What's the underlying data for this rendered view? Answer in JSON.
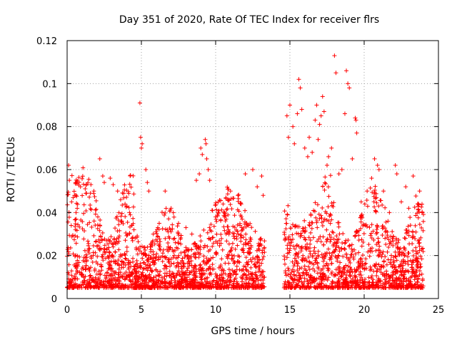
{
  "chart_data": {
    "type": "scatter",
    "title": "Day 351 of 2020, Rate Of TEC Index for receiver flrs",
    "xlabel": "GPS time / hours",
    "ylabel": "ROTI / TECUs",
    "xlim": [
      0,
      25
    ],
    "ylim": [
      0,
      0.12
    ],
    "x_ticks": [
      0,
      5,
      10,
      15,
      20,
      25
    ],
    "y_ticks": [
      0,
      0.02,
      0.04,
      0.06,
      0.08,
      0.1,
      0.12
    ],
    "grid": true,
    "marker": "+",
    "colors": {
      "points": "#ff0000",
      "axes": "#000000",
      "grid": "#a0a0a0"
    },
    "data_gap_hours": [
      13.3,
      14.6
    ],
    "series": [
      {
        "name": "",
        "points": [
          [
            0.1,
            0.062
          ],
          [
            0.15,
            0.055
          ],
          [
            0.3,
            0.045
          ],
          [
            0.5,
            0.048
          ],
          [
            0.6,
            0.04
          ],
          [
            0.9,
            0.052
          ],
          [
            1.3,
            0.049
          ],
          [
            1.8,
            0.05
          ],
          [
            2.2,
            0.065
          ],
          [
            2.4,
            0.057
          ],
          [
            2.5,
            0.054
          ],
          [
            2.9,
            0.056
          ],
          [
            3.1,
            0.053
          ],
          [
            3.4,
            0.05
          ],
          [
            3.6,
            0.046
          ],
          [
            3.9,
            0.044
          ],
          [
            4.2,
            0.04
          ],
          [
            4.5,
            0.032
          ],
          [
            4.9,
            0.091
          ],
          [
            4.95,
            0.075
          ],
          [
            5.0,
            0.07
          ],
          [
            5.05,
            0.072
          ],
          [
            5.3,
            0.06
          ],
          [
            5.4,
            0.054
          ],
          [
            5.5,
            0.05
          ],
          [
            5.8,
            0.03
          ],
          [
            6.2,
            0.035
          ],
          [
            6.6,
            0.05
          ],
          [
            7.0,
            0.042
          ],
          [
            7.5,
            0.035
          ],
          [
            8.0,
            0.033
          ],
          [
            8.4,
            0.03
          ],
          [
            8.7,
            0.055
          ],
          [
            8.9,
            0.058
          ],
          [
            9.0,
            0.07
          ],
          [
            9.1,
            0.067
          ],
          [
            9.3,
            0.074
          ],
          [
            9.35,
            0.072
          ],
          [
            9.4,
            0.065
          ],
          [
            9.5,
            0.06
          ],
          [
            9.6,
            0.055
          ],
          [
            10.0,
            0.038
          ],
          [
            10.5,
            0.044
          ],
          [
            11.0,
            0.05
          ],
          [
            11.5,
            0.048
          ],
          [
            12.0,
            0.058
          ],
          [
            12.5,
            0.06
          ],
          [
            12.8,
            0.052
          ],
          [
            13.1,
            0.057
          ],
          [
            13.2,
            0.048
          ],
          [
            14.8,
            0.085
          ],
          [
            14.9,
            0.075
          ],
          [
            15.0,
            0.09
          ],
          [
            15.2,
            0.08
          ],
          [
            15.3,
            0.072
          ],
          [
            15.5,
            0.086
          ],
          [
            15.6,
            0.102
          ],
          [
            15.7,
            0.098
          ],
          [
            15.8,
            0.088
          ],
          [
            16.0,
            0.07
          ],
          [
            16.2,
            0.066
          ],
          [
            16.3,
            0.075
          ],
          [
            16.5,
            0.068
          ],
          [
            16.7,
            0.083
          ],
          [
            16.8,
            0.09
          ],
          [
            16.9,
            0.074
          ],
          [
            17.0,
            0.081
          ],
          [
            17.1,
            0.085
          ],
          [
            17.2,
            0.094
          ],
          [
            17.3,
            0.087
          ],
          [
            17.5,
            0.062
          ],
          [
            17.6,
            0.066
          ],
          [
            17.8,
            0.07
          ],
          [
            18.0,
            0.113
          ],
          [
            18.1,
            0.105
          ],
          [
            18.3,
            0.058
          ],
          [
            18.5,
            0.06
          ],
          [
            18.7,
            0.086
          ],
          [
            18.8,
            0.106
          ],
          [
            18.9,
            0.1
          ],
          [
            19.0,
            0.098
          ],
          [
            19.2,
            0.065
          ],
          [
            19.4,
            0.084
          ],
          [
            19.45,
            0.083
          ],
          [
            19.5,
            0.077
          ],
          [
            19.8,
            0.045
          ],
          [
            20.2,
            0.05
          ],
          [
            20.5,
            0.056
          ],
          [
            20.7,
            0.065
          ],
          [
            20.9,
            0.062
          ],
          [
            21.0,
            0.06
          ],
          [
            21.3,
            0.05
          ],
          [
            21.7,
            0.04
          ],
          [
            22.1,
            0.062
          ],
          [
            22.2,
            0.058
          ],
          [
            22.5,
            0.045
          ],
          [
            22.8,
            0.052
          ],
          [
            23.0,
            0.042
          ],
          [
            23.3,
            0.057
          ],
          [
            23.6,
            0.044
          ],
          [
            23.9,
            0.04
          ]
        ]
      }
    ]
  }
}
